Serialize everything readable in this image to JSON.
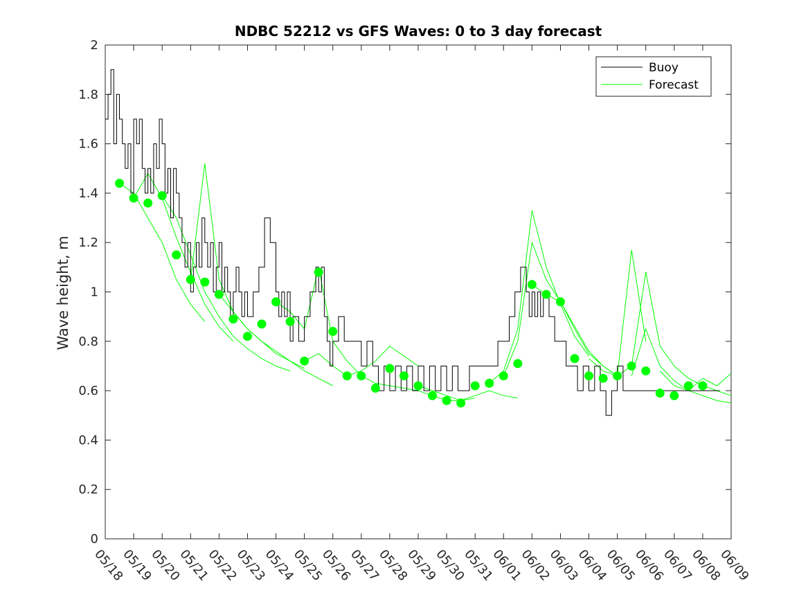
{
  "chart_data": {
    "type": "line",
    "title": "NDBC 52212 vs GFS Waves: 0 to 3 day forecast",
    "xlabel": "",
    "ylabel": "Wave height, m",
    "xlim": [
      "05/18",
      "06/09"
    ],
    "ylim": [
      0,
      2
    ],
    "x_ticks": [
      "05/18",
      "05/19",
      "05/20",
      "05/21",
      "05/22",
      "05/23",
      "05/24",
      "05/25",
      "05/26",
      "05/27",
      "05/28",
      "05/29",
      "05/30",
      "05/31",
      "06/01",
      "06/02",
      "06/03",
      "06/04",
      "06/05",
      "06/06",
      "06/07",
      "06/08",
      "06/09"
    ],
    "y_ticks": [
      "0",
      "0.2",
      "0.4",
      "0.6",
      "0.8",
      "1",
      "1.2",
      "1.4",
      "1.6",
      "1.8",
      "2"
    ],
    "grid": false,
    "legend_position": "top-right",
    "colors": {
      "buoy": "#000000",
      "forecast": "#00ff00",
      "axis": "#262626"
    },
    "series": [
      {
        "name": "Buoy",
        "x_days": [
          0,
          0.1,
          0.2,
          0.3,
          0.4,
          0.5,
          0.6,
          0.7,
          0.8,
          0.9,
          1.0,
          1.1,
          1.2,
          1.3,
          1.4,
          1.5,
          1.6,
          1.7,
          1.8,
          1.9,
          2.0,
          2.1,
          2.2,
          2.3,
          2.4,
          2.5,
          2.6,
          2.7,
          2.8,
          2.9,
          3.0,
          3.1,
          3.2,
          3.3,
          3.4,
          3.5,
          3.6,
          3.7,
          3.8,
          3.9,
          4.0,
          4.1,
          4.2,
          4.3,
          4.4,
          4.5,
          4.6,
          4.7,
          4.8,
          4.9,
          5.0,
          5.2,
          5.4,
          5.6,
          5.8,
          6.0,
          6.1,
          6.2,
          6.3,
          6.4,
          6.5,
          6.6,
          6.8,
          7.0,
          7.2,
          7.4,
          7.5,
          7.6,
          7.7,
          7.8,
          7.9,
          8.0,
          8.2,
          8.4,
          8.6,
          8.8,
          9.0,
          9.2,
          9.4,
          9.6,
          9.8,
          10.0,
          10.2,
          10.4,
          10.6,
          10.8,
          11.0,
          11.2,
          11.4,
          11.6,
          11.8,
          12.0,
          12.2,
          12.4,
          12.6,
          12.8,
          13.0,
          13.2,
          13.4,
          13.6,
          13.8,
          14.0,
          14.2,
          14.4,
          14.6,
          14.8,
          14.9,
          15.0,
          15.1,
          15.2,
          15.3,
          15.4,
          15.6,
          15.8,
          16.0,
          16.2,
          16.4,
          16.6,
          16.8,
          17.0,
          17.2,
          17.4,
          17.6,
          17.8,
          18.0,
          18.2,
          18.4,
          18.6,
          18.8,
          19.0,
          19.2,
          19.4,
          19.6,
          19.8,
          20.0,
          20.2,
          20.4,
          20.6,
          20.8,
          21.0,
          21.2,
          21.4,
          21.6
        ],
        "values": [
          1.7,
          1.8,
          1.9,
          1.6,
          1.8,
          1.7,
          1.6,
          1.5,
          1.6,
          1.4,
          1.7,
          1.6,
          1.7,
          1.5,
          1.4,
          1.5,
          1.4,
          1.6,
          1.5,
          1.7,
          1.6,
          1.4,
          1.5,
          1.3,
          1.5,
          1.4,
          1.3,
          1.2,
          1.1,
          1.2,
          1.0,
          1.1,
          1.2,
          1.1,
          1.3,
          1.2,
          1.1,
          1.2,
          1.0,
          1.1,
          1.2,
          1.0,
          1.1,
          1.0,
          0.9,
          1.0,
          1.1,
          1.0,
          0.9,
          1.0,
          0.9,
          1.0,
          1.1,
          1.3,
          1.2,
          1.0,
          0.9,
          1.0,
          0.9,
          1.0,
          0.8,
          0.9,
          0.8,
          0.9,
          1.0,
          1.1,
          1.0,
          1.1,
          0.9,
          0.8,
          0.7,
          0.8,
          0.9,
          0.8,
          0.8,
          0.8,
          0.7,
          0.8,
          0.7,
          0.6,
          0.7,
          0.6,
          0.7,
          0.6,
          0.7,
          0.6,
          0.7,
          0.6,
          0.7,
          0.6,
          0.7,
          0.6,
          0.7,
          0.6,
          0.6,
          0.7,
          0.7,
          0.7,
          0.7,
          0.7,
          0.8,
          0.8,
          0.9,
          1.0,
          1.1,
          1.0,
          0.9,
          1.0,
          0.9,
          1.0,
          0.9,
          1.0,
          0.9,
          0.8,
          0.8,
          0.7,
          0.7,
          0.6,
          0.7,
          0.6,
          0.7,
          0.6,
          0.5,
          0.6,
          0.7,
          0.6,
          0.6,
          0.6,
          0.6,
          0.6,
          0.6,
          0.6,
          0.6,
          0.6,
          0.6,
          0.6,
          0.6,
          0.6,
          0.6,
          0.6,
          0.6,
          0.6,
          0.6
        ]
      },
      {
        "name": "Forecast",
        "points_x_days": [
          0.5,
          1.0,
          1.5,
          2.0,
          2.5,
          3.0,
          3.5,
          4.0,
          4.5,
          5.0,
          5.5,
          6.0,
          6.5,
          7.0,
          7.5,
          8.0,
          8.5,
          9.0,
          9.5,
          10.0,
          10.5,
          11.0,
          11.5,
          12.0,
          12.5,
          13.0,
          13.5,
          14.0,
          14.5,
          15.0,
          15.5,
          16.0,
          16.5,
          17.0,
          17.5,
          18.0,
          18.5,
          19.0,
          19.5,
          20.0,
          20.5,
          21.0
        ],
        "points": [
          1.44,
          1.38,
          1.36,
          1.39,
          1.15,
          1.05,
          1.04,
          0.99,
          0.89,
          0.82,
          0.87,
          0.96,
          0.88,
          0.72,
          1.08,
          0.84,
          0.66,
          0.66,
          0.61,
          0.69,
          0.66,
          0.62,
          0.58,
          0.56,
          0.55,
          0.62,
          0.63,
          0.66,
          0.71,
          1.03,
          0.99,
          0.96,
          0.73,
          0.66,
          0.65,
          0.66,
          0.7,
          0.68,
          0.59,
          0.58,
          0.62,
          0.62
        ],
        "runs": [
          {
            "x_days": [
              0.5,
              1.0,
              1.5,
              2.0,
              2.5,
              3.0,
              3.5
            ],
            "values": [
              1.44,
              1.4,
              1.3,
              1.2,
              1.05,
              0.95,
              0.88
            ]
          },
          {
            "x_days": [
              1.0,
              1.5,
              2.0,
              2.5,
              3.0,
              3.5,
              4.0,
              4.5
            ],
            "values": [
              1.38,
              1.48,
              1.38,
              1.22,
              1.08,
              0.95,
              0.86,
              0.8
            ]
          },
          {
            "x_days": [
              2.0,
              2.5,
              3.0,
              3.5,
              4.0,
              4.5,
              5.0,
              5.5,
              6.0,
              6.5
            ],
            "values": [
              1.39,
              1.3,
              1.15,
              1.0,
              0.9,
              0.82,
              0.77,
              0.73,
              0.7,
              0.68
            ]
          },
          {
            "x_days": [
              3.0,
              3.5,
              4.0,
              4.5,
              5.0,
              5.5,
              6.0,
              6.5,
              7.0
            ],
            "values": [
              1.05,
              1.52,
              1.05,
              0.92,
              0.85,
              0.8,
              0.76,
              0.72,
              0.69
            ]
          },
          {
            "x_days": [
              4.0,
              4.5,
              5.0,
              5.5,
              6.0,
              6.5,
              7.0,
              7.5,
              8.0
            ],
            "values": [
              0.99,
              0.92,
              0.85,
              0.8,
              0.75,
              0.72,
              0.68,
              0.65,
              0.62
            ]
          },
          {
            "x_days": [
              6.0,
              6.5,
              7.0,
              7.5,
              8.0,
              8.5,
              9.0
            ],
            "values": [
              0.96,
              0.92,
              0.85,
              1.1,
              0.8,
              0.72,
              0.66
            ]
          },
          {
            "x_days": [
              7.0,
              7.5,
              8.0,
              8.5,
              9.0,
              9.5,
              10.0,
              10.5,
              11.0
            ],
            "values": [
              0.72,
              0.75,
              0.7,
              0.66,
              0.68,
              0.72,
              0.78,
              0.74,
              0.7
            ]
          },
          {
            "x_days": [
              9.0,
              9.5,
              10.0,
              10.5,
              11.0,
              11.5,
              12.0,
              12.5,
              13.0
            ],
            "values": [
              0.66,
              0.63,
              0.62,
              0.61,
              0.6,
              0.58,
              0.56,
              0.56,
              0.57
            ]
          },
          {
            "x_days": [
              11.0,
              11.5,
              12.0,
              12.5,
              13.0,
              13.5,
              14.0,
              14.5
            ],
            "values": [
              0.62,
              0.6,
              0.58,
              0.56,
              0.58,
              0.6,
              0.58,
              0.57
            ]
          },
          {
            "x_days": [
              13.5,
              14.0,
              14.5,
              15.0,
              15.5,
              16.0,
              16.5,
              17.0
            ],
            "values": [
              0.63,
              0.68,
              0.85,
              1.33,
              1.1,
              0.95,
              0.82,
              0.74
            ]
          },
          {
            "x_days": [
              14.0,
              14.5,
              15.0,
              15.5,
              16.0,
              16.5,
              17.0,
              17.5,
              18.0
            ],
            "values": [
              0.66,
              0.8,
              1.2,
              1.05,
              0.96,
              0.86,
              0.76,
              0.7,
              0.66
            ]
          },
          {
            "x_days": [
              15.0,
              15.5,
              16.0,
              16.5,
              17.0,
              17.5,
              18.0,
              18.5,
              19.0
            ],
            "values": [
              1.03,
              0.99,
              0.96,
              0.85,
              0.75,
              0.7,
              0.66,
              1.17,
              0.8
            ]
          },
          {
            "x_days": [
              17.0,
              17.5,
              18.0,
              18.5,
              19.0,
              19.5,
              20.0,
              20.5,
              21.0,
              21.5,
              22.0
            ],
            "values": [
              0.73,
              0.68,
              0.66,
              0.7,
              1.08,
              0.78,
              0.7,
              0.65,
              0.62,
              0.6,
              0.58
            ]
          },
          {
            "x_days": [
              18.5,
              19.0,
              19.5,
              20.0,
              20.5,
              21.0,
              21.5,
              22.0
            ],
            "values": [
              0.66,
              0.85,
              0.7,
              0.64,
              0.6,
              0.58,
              0.56,
              0.55
            ]
          },
          {
            "x_days": [
              19.5,
              20.0,
              20.5,
              21.0,
              21.5,
              22.0
            ],
            "values": [
              0.68,
              0.62,
              0.6,
              0.65,
              0.62,
              0.67
            ]
          }
        ]
      }
    ]
  }
}
